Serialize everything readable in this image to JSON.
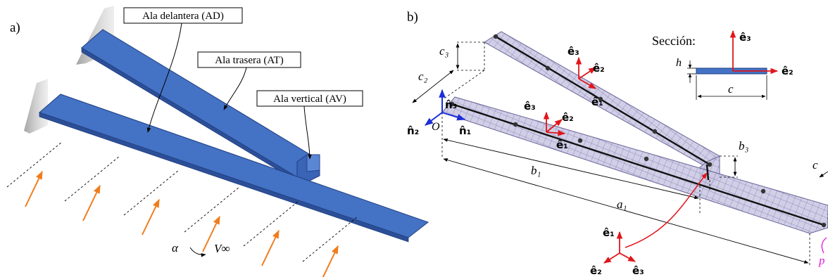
{
  "panel_a": {
    "label": "a)",
    "callouts": {
      "ad": "Ala delantera (AD)",
      "at": "Ala trasera (AT)",
      "av": "Ala vertical (AV)"
    },
    "alpha": "α",
    "velocity": "V∞"
  },
  "panel_b": {
    "label": "b)",
    "section_label": "Sección:",
    "section_dims": {
      "h": "h",
      "c": "c"
    },
    "origin": "O",
    "global_axes": {
      "n1": "n̂₁",
      "n2": "n̂₂",
      "n3": "n̂₃"
    },
    "local_axes": {
      "e1": "ê₁",
      "e2": "ê₂",
      "e3": "ê₃"
    },
    "dims": {
      "c2": "c₂",
      "c3": "c₃",
      "b1": "b₁",
      "b3": "b₃",
      "a1": "a₁",
      "c_edge": "c"
    },
    "partial_magenta": "p"
  },
  "colors": {
    "wing_fill": "#4472c4",
    "wing_stroke": "#1f3e80",
    "mesh_fill": "#c8c6e2",
    "mesh_line": "#7a74a8",
    "local_axes": "#e0161b",
    "global_axes": "#1b2ed8",
    "arrows": "#f07c1c",
    "magenta": "#e01cd8"
  }
}
